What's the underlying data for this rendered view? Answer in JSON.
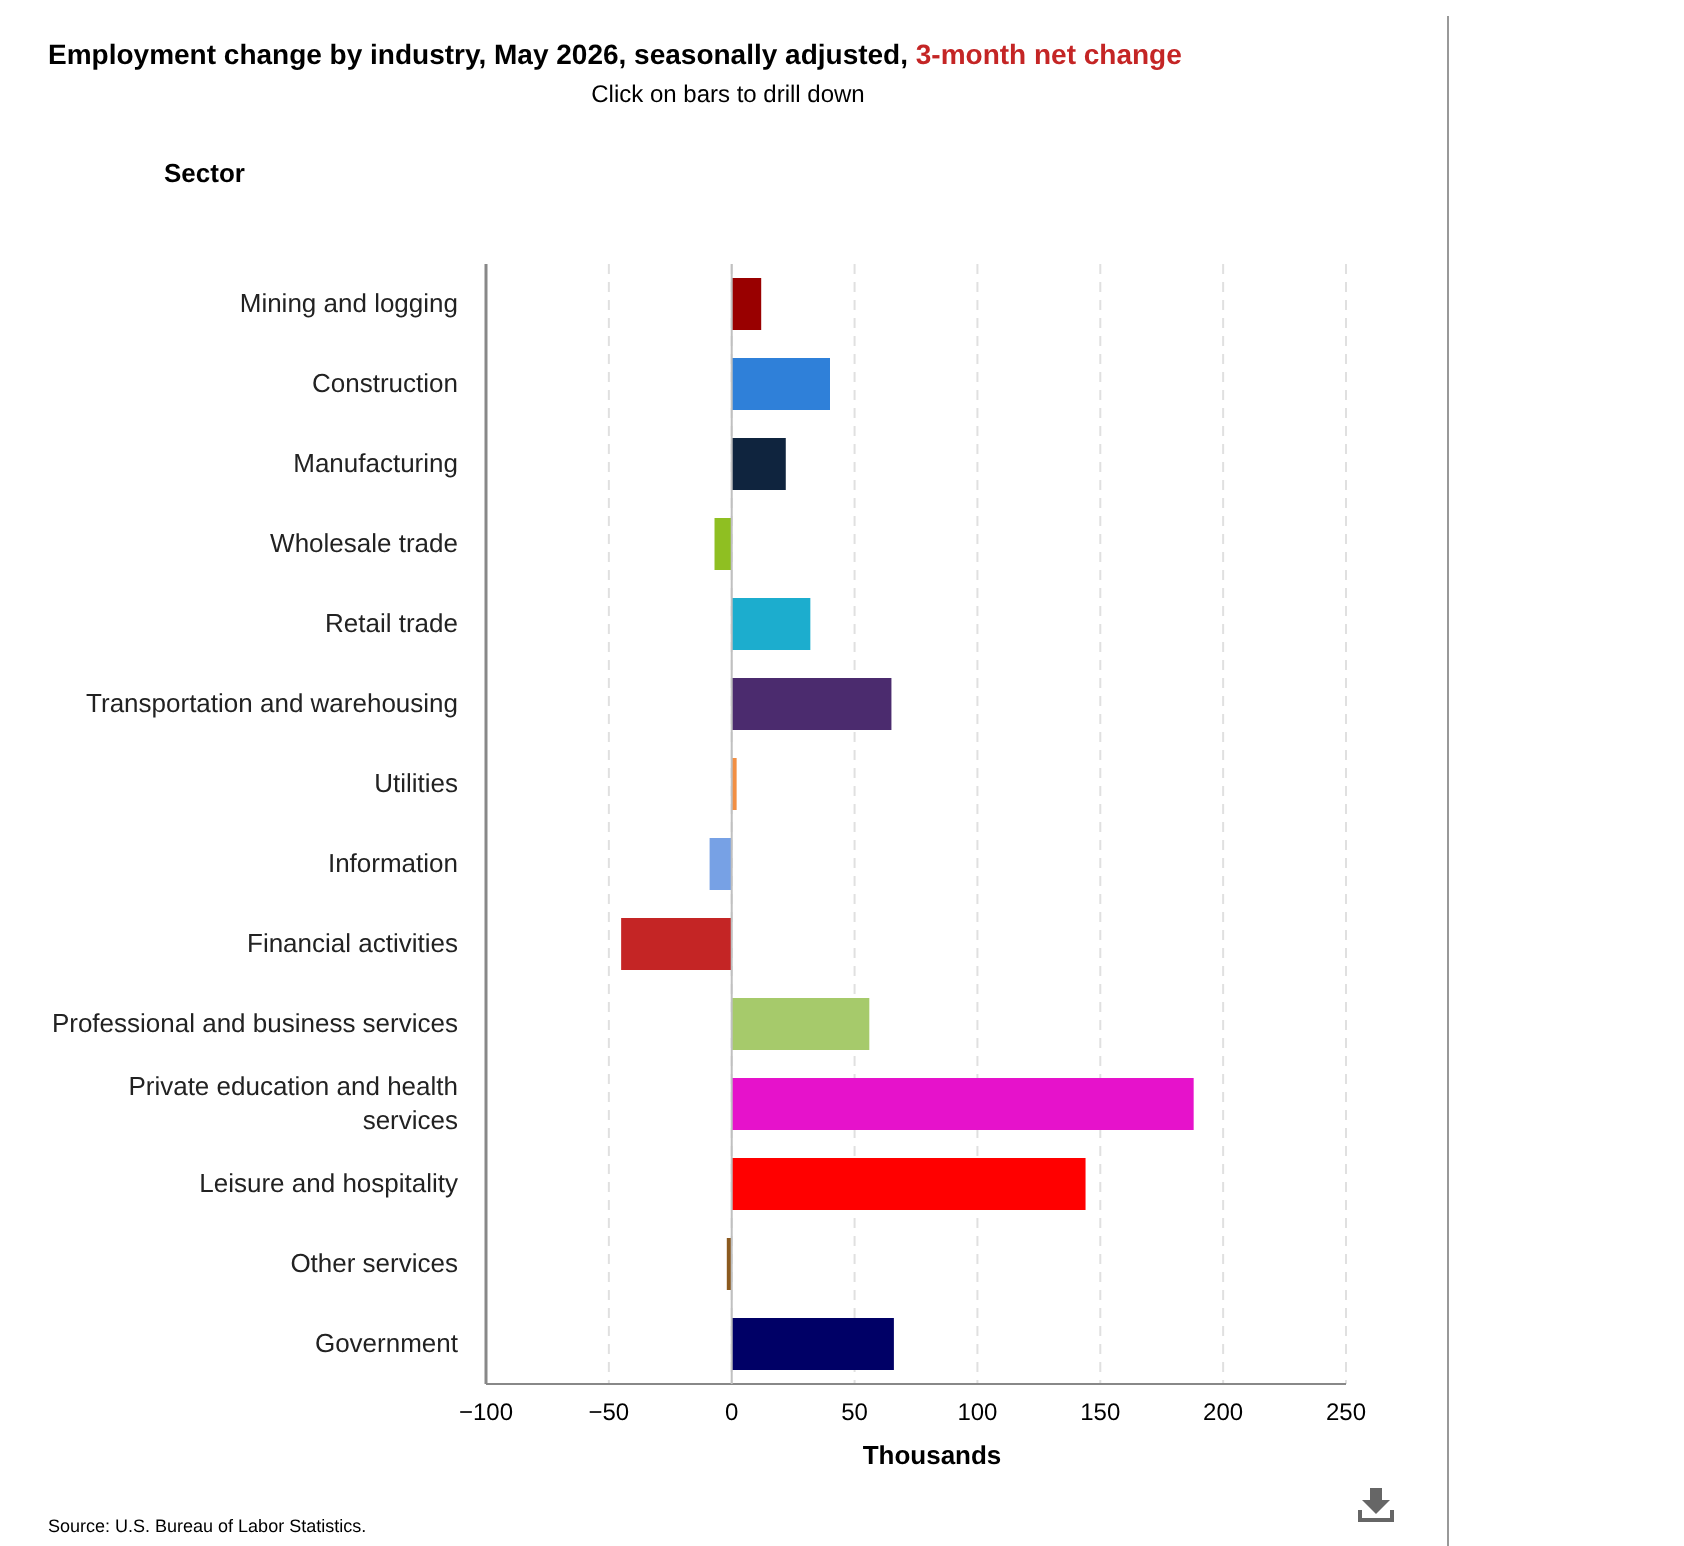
{
  "chart_data": {
    "type": "bar",
    "orientation": "horizontal",
    "title": "Employment change by industry, May 2026, seasonally adjusted, 3-month net change",
    "subtitle": "Click on bars to drill down",
    "ylabel": "Sector",
    "xlabel": "Thousands",
    "categories": [
      "Mining and logging",
      "Construction",
      "Manufacturing",
      "Wholesale trade",
      "Retail trade",
      "Transportation and warehousing",
      "Utilities",
      "Information",
      "Financial activities",
      "Professional and business services",
      "Private education and health services",
      "Leisure and hospitality",
      "Other services",
      "Government"
    ],
    "values": [
      12,
      40,
      22,
      -7,
      32,
      65,
      2,
      -9,
      -45,
      56,
      188,
      144,
      -2,
      66
    ],
    "colors": [
      "#990000",
      "#2f80d9",
      "#0f243e",
      "#8fbf22",
      "#1cadce",
      "#4b2b6e",
      "#f28f43",
      "#77a1e5",
      "#c42525",
      "#a6ca6b",
      "#e612cb",
      "#ff0000",
      "#8b5a1f",
      "#000066"
    ],
    "xlim": [
      -100,
      250
    ],
    "xticks": [
      {
        "value": -100,
        "label": "−100"
      },
      {
        "value": -50,
        "label": "−50"
      },
      0,
      50,
      100,
      150,
      200,
      250
    ],
    "grid": "x",
    "annotations": [
      "Source: U.S. Bureau of Labor Statistics."
    ]
  }
}
